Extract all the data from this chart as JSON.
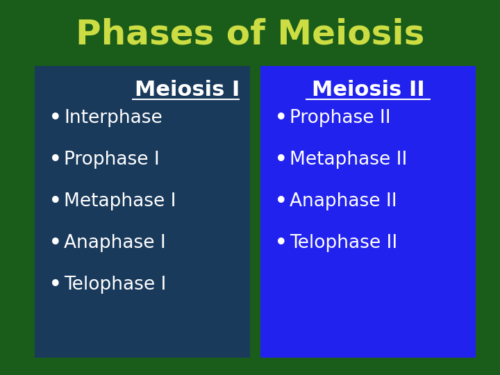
{
  "title": "Phases of Meiosis",
  "title_color": "#CCDD44",
  "title_fontsize": 36,
  "background_color": "#1A5C1A",
  "left_box_color": "#1A3A5C",
  "right_box_color": "#2222EE",
  "left_header": "Meiosis I",
  "right_header": "Meiosis II",
  "header_color": "#FFFFFF",
  "header_fontsize": 22,
  "left_items": [
    "Interphase",
    "Prophase I",
    "Metaphase I",
    "Anaphase I",
    "Telophase I"
  ],
  "right_items": [
    "Prophase II",
    "Metaphase II",
    "Anaphase II",
    "Telophase II"
  ],
  "item_color": "#FFFFFF",
  "item_fontsize": 19,
  "bullet": "•"
}
